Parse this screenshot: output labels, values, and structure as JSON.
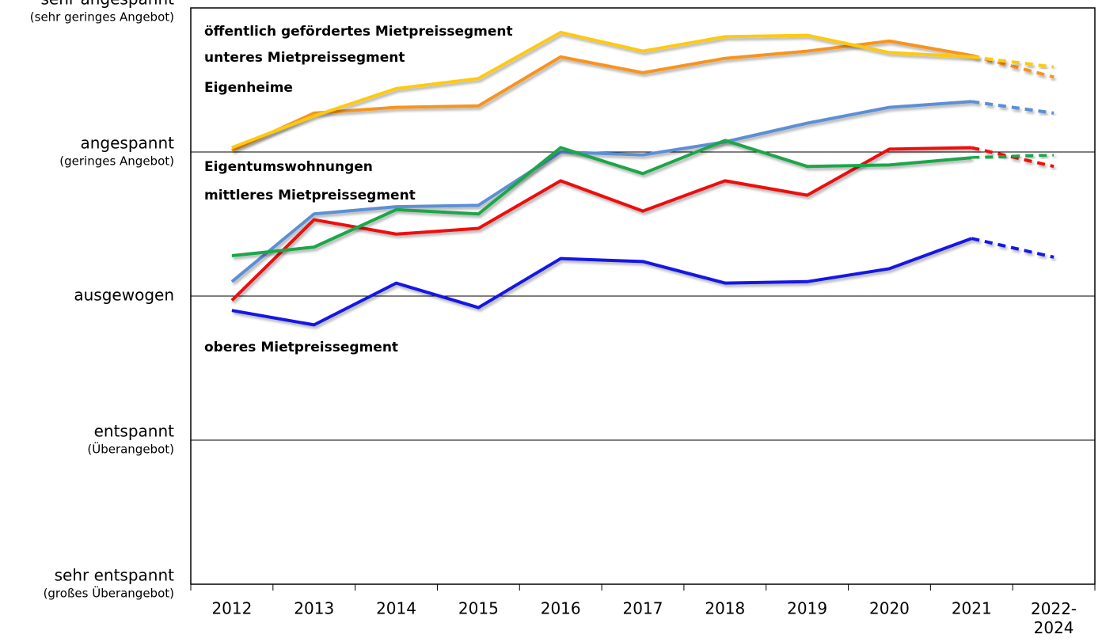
{
  "chart_data": {
    "type": "line",
    "categories": [
      "2012",
      "2013",
      "2014",
      "2015",
      "2016",
      "2017",
      "2018",
      "2019",
      "2020",
      "2021",
      "2022-2024"
    ],
    "ylim": [
      1,
      5
    ],
    "yticks": [
      {
        "value": 5,
        "label": "sehr angespannt",
        "sublabel": "(sehr geringes Angebot)"
      },
      {
        "value": 4,
        "label": "angespannt",
        "sublabel": "(geringes Angebot)"
      },
      {
        "value": 3,
        "label": "ausgewogen"
      },
      {
        "value": 2,
        "label": "entspannt",
        "sublabel": "(Überangebot)"
      },
      {
        "value": 1,
        "label": "sehr entspannt",
        "sublabel": "(großes Überangebot)"
      }
    ],
    "grid": true,
    "dash_last_segment": true,
    "series": [
      {
        "name": "öffentlich gefördertes Mietpreissegment",
        "color": "#f7941d",
        "values": [
          4.01,
          4.27,
          4.31,
          4.32,
          4.66,
          4.55,
          4.65,
          4.7,
          4.77,
          4.67,
          4.52
        ]
      },
      {
        "name": "unteres Mietpreissegment",
        "color": "#ffc90e",
        "values": [
          4.03,
          4.25,
          4.44,
          4.51,
          4.83,
          4.7,
          4.8,
          4.81,
          4.69,
          4.66,
          4.59
        ]
      },
      {
        "name": "Eigenheime",
        "color": "#5b8fd4",
        "values": [
          3.1,
          3.57,
          3.62,
          3.63,
          4.0,
          3.98,
          4.07,
          4.2,
          4.31,
          4.35,
          4.27
        ]
      },
      {
        "name": "Eigentumswohnungen",
        "color": "#ee1111",
        "values": [
          2.97,
          3.53,
          3.43,
          3.47,
          3.8,
          3.59,
          3.8,
          3.7,
          4.02,
          4.03,
          3.9
        ]
      },
      {
        "name": "mittleres Mietpreissegment",
        "color": "#1aa64a",
        "values": [
          3.28,
          3.34,
          3.6,
          3.57,
          4.03,
          3.85,
          4.08,
          3.9,
          3.91,
          3.96,
          3.98
        ]
      },
      {
        "name": "oberes Mietpreissegment",
        "color": "#1414e6",
        "values": [
          2.9,
          2.8,
          3.09,
          2.92,
          3.26,
          3.24,
          3.09,
          3.1,
          3.19,
          3.4,
          3.27
        ]
      }
    ]
  }
}
